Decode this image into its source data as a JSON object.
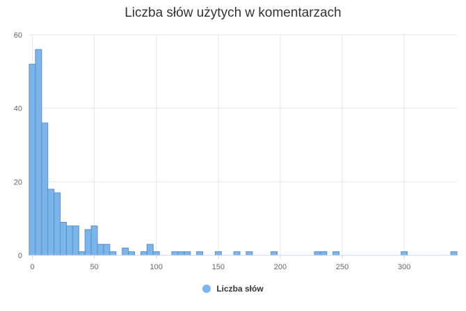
{
  "chart_data": {
    "type": "bar",
    "title": "Liczba słów użytych w komentarzach",
    "xlabel": "",
    "ylabel": "",
    "xlim": [
      -2.5,
      342.5
    ],
    "ylim": [
      0,
      60
    ],
    "x_ticks": [
      0,
      50,
      100,
      150,
      200,
      250,
      300
    ],
    "y_ticks": [
      0,
      20,
      40,
      60
    ],
    "bin_width": 5,
    "grid": true,
    "legend_position": "bottom-center",
    "series": [
      {
        "name": "Liczba słów",
        "color": "#7cb5ec",
        "border_color": "#5a8fc7",
        "x": [
          0,
          5,
          10,
          15,
          20,
          25,
          30,
          35,
          40,
          45,
          50,
          55,
          60,
          65,
          75,
          80,
          90,
          95,
          100,
          115,
          120,
          125,
          135,
          150,
          165,
          175,
          195,
          230,
          235,
          245,
          300,
          340
        ],
        "values": [
          52,
          56,
          36,
          18,
          17,
          9,
          8,
          8,
          1,
          7,
          8,
          3,
          3,
          1,
          2,
          1,
          1,
          3,
          1,
          1,
          1,
          1,
          1,
          1,
          1,
          1,
          1,
          1,
          1,
          1,
          1,
          1
        ]
      }
    ]
  }
}
